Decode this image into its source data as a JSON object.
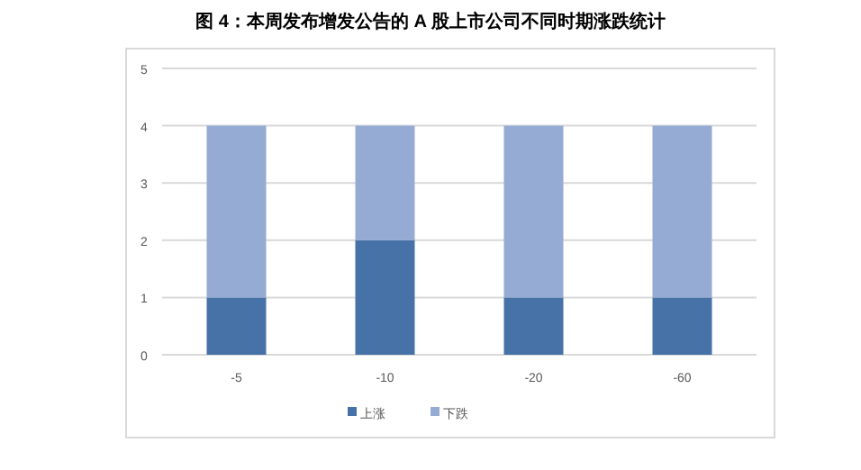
{
  "chart_data": {
    "type": "bar",
    "title": "图 4：本周发布增发公告的 A 股上市公司不同时期涨跌统计",
    "stacked": true,
    "categories": [
      "-5",
      "-10",
      "-20",
      "-60"
    ],
    "series": [
      {
        "name": "上涨",
        "color": "#4672a8",
        "values": [
          1,
          2,
          1,
          1
        ]
      },
      {
        "name": "下跌",
        "color": "#96abd3",
        "values": [
          3,
          2,
          3,
          3
        ]
      }
    ],
    "ylim": [
      0,
      5
    ],
    "yticks": [
      0,
      1,
      2,
      3,
      4,
      5
    ],
    "grid": "y",
    "legend": "bottom"
  }
}
